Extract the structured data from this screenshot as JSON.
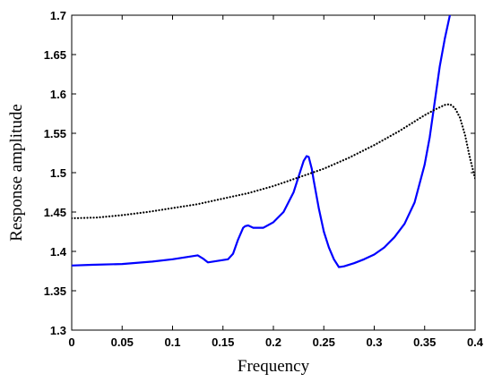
{
  "chart_data": {
    "type": "line",
    "title": "",
    "xlabel": "Frequency",
    "ylabel": "Response amplitude",
    "xlim": [
      0,
      0.4
    ],
    "ylim": [
      1.3,
      1.7
    ],
    "xticks": [
      "0",
      "0.05",
      "0.1",
      "0.15",
      "0.2",
      "0.25",
      "0.3",
      "0.35",
      "0.4"
    ],
    "yticks": [
      "1.3",
      "1.35",
      "1.4",
      "1.45",
      "1.5",
      "1.55",
      "1.6",
      "1.65",
      "1.7"
    ],
    "grid": false,
    "legend": "none",
    "series": [
      {
        "style": "solid",
        "color": "#0000ff",
        "x": [
          0,
          0.02,
          0.05,
          0.08,
          0.1,
          0.115,
          0.125,
          0.13,
          0.135,
          0.14,
          0.15,
          0.155,
          0.16,
          0.165,
          0.17,
          0.172,
          0.175,
          0.18,
          0.19,
          0.2,
          0.21,
          0.22,
          0.225,
          0.23,
          0.233,
          0.235,
          0.238,
          0.24,
          0.245,
          0.25,
          0.255,
          0.26,
          0.265,
          0.27,
          0.28,
          0.29,
          0.3,
          0.31,
          0.32,
          0.33,
          0.34,
          0.35,
          0.355,
          0.36,
          0.365,
          0.37,
          0.375
        ],
        "y": [
          1.382,
          1.383,
          1.384,
          1.387,
          1.39,
          1.393,
          1.395,
          1.391,
          1.386,
          1.387,
          1.389,
          1.39,
          1.397,
          1.415,
          1.43,
          1.432,
          1.433,
          1.43,
          1.43,
          1.437,
          1.45,
          1.475,
          1.495,
          1.515,
          1.521,
          1.52,
          1.505,
          1.49,
          1.455,
          1.425,
          1.405,
          1.39,
          1.38,
          1.381,
          1.385,
          1.39,
          1.396,
          1.405,
          1.418,
          1.435,
          1.462,
          1.51,
          1.545,
          1.59,
          1.635,
          1.67,
          1.7
        ]
      },
      {
        "style": "dotted",
        "color": "#000000",
        "x": [
          0,
          0.025,
          0.05,
          0.075,
          0.1,
          0.125,
          0.15,
          0.175,
          0.2,
          0.225,
          0.25,
          0.275,
          0.3,
          0.325,
          0.35,
          0.36,
          0.37,
          0.375,
          0.38,
          0.385,
          0.39,
          0.395,
          0.4
        ],
        "y": [
          1.442,
          1.443,
          1.446,
          1.45,
          1.455,
          1.46,
          1.467,
          1.474,
          1.483,
          1.494,
          1.505,
          1.519,
          1.535,
          1.553,
          1.573,
          1.58,
          1.586,
          1.587,
          1.582,
          1.57,
          1.548,
          1.518,
          1.493
        ]
      }
    ]
  }
}
